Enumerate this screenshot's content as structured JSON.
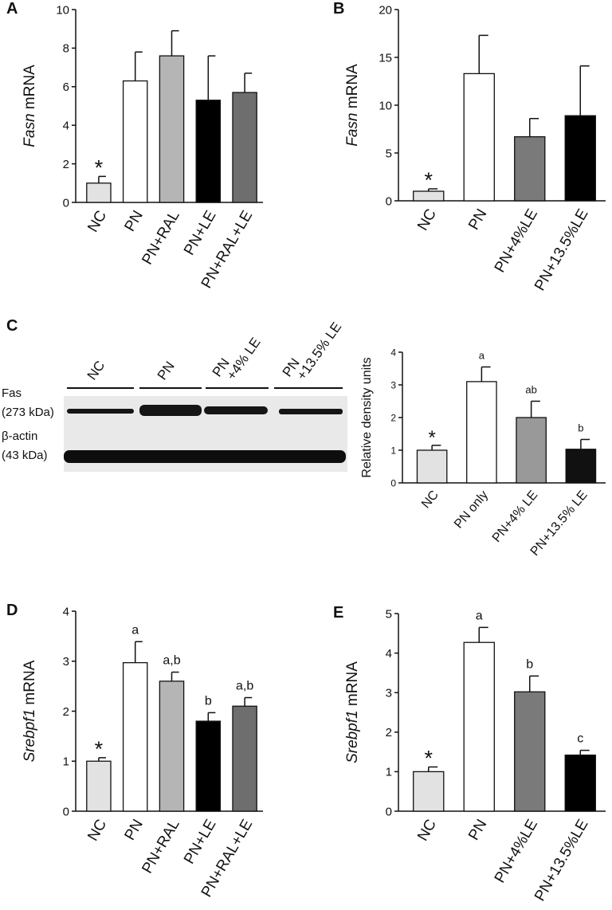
{
  "chart_data": [
    {
      "type": "bar",
      "panel": "A",
      "ylabel_gene": "Fasn",
      "ylabel": "mRNA",
      "categories": [
        "NC",
        "PN",
        "PN+RAL",
        "PN+LE",
        "PN+RAL+LE"
      ],
      "values": [
        1.0,
        6.3,
        7.6,
        5.3,
        5.7
      ],
      "errors": [
        0.35,
        1.5,
        1.3,
        2.3,
        1.0
      ],
      "labels": [
        "*",
        null,
        null,
        null,
        null
      ],
      "colors": [
        "#e2e2e2",
        "#ffffff",
        "#b5b5b5",
        "#000000",
        "#6e6e6e"
      ],
      "ylim": [
        0,
        10
      ],
      "yticks": [
        0,
        2,
        4,
        6,
        8,
        10
      ]
    },
    {
      "type": "bar",
      "panel": "B",
      "ylabel_gene": "Fasn",
      "ylabel": "mRNA",
      "categories": [
        "NC",
        "PN",
        "PN+4%LE",
        "PN+13.5%LE"
      ],
      "values": [
        1.0,
        13.3,
        6.7,
        8.9
      ],
      "errors": [
        0.25,
        4.0,
        1.9,
        5.2
      ],
      "labels": [
        "*",
        null,
        null,
        null
      ],
      "colors": [
        "#e2e2e2",
        "#ffffff",
        "#7a7a7a",
        "#000000"
      ],
      "ylim": [
        0,
        20
      ],
      "yticks": [
        0,
        5,
        10,
        15,
        20
      ]
    },
    {
      "type": "bar",
      "panel": "C",
      "ylabel": "Relative density units",
      "categories": [
        "NC",
        "PN only",
        "PN+4% LE",
        "PN+13.5% LE"
      ],
      "values": [
        1.0,
        3.1,
        2.0,
        1.03
      ],
      "errors": [
        0.15,
        0.45,
        0.5,
        0.3
      ],
      "labels": [
        "*",
        "a",
        "ab",
        "b"
      ],
      "colors": [
        "#e2e2e2",
        "#ffffff",
        "#999999",
        "#111111"
      ],
      "ylim": [
        0,
        4
      ],
      "yticks": [
        0,
        1,
        2,
        3,
        4
      ]
    },
    {
      "type": "bar",
      "panel": "D",
      "ylabel_gene": "Srebpf1",
      "ylabel": "mRNA",
      "categories": [
        "NC",
        "PN",
        "PN+RAL",
        "PN+LE",
        "PN+RAL+LE"
      ],
      "values": [
        1.0,
        2.97,
        2.6,
        1.8,
        2.1
      ],
      "errors": [
        0.07,
        0.42,
        0.18,
        0.17,
        0.17
      ],
      "labels": [
        "*",
        "a",
        "a,b",
        "b",
        "a,b"
      ],
      "colors": [
        "#e2e2e2",
        "#ffffff",
        "#b5b5b5",
        "#000000",
        "#6e6e6e"
      ],
      "ylim": [
        0,
        4
      ],
      "yticks": [
        0,
        1,
        2,
        3,
        4
      ]
    },
    {
      "type": "bar",
      "panel": "E",
      "ylabel_gene": "Srebpf1",
      "ylabel": "mRNA",
      "categories": [
        "NC",
        "PN",
        "PN+4%LE",
        "PN+13.5%LE"
      ],
      "values": [
        1.0,
        4.27,
        3.02,
        1.42
      ],
      "errors": [
        0.12,
        0.38,
        0.4,
        0.12
      ],
      "labels": [
        "*",
        "a",
        "b",
        "c"
      ],
      "colors": [
        "#e2e2e2",
        "#ffffff",
        "#7a7a7a",
        "#000000"
      ],
      "ylim": [
        0,
        5
      ],
      "yticks": [
        0,
        1,
        2,
        3,
        4,
        5
      ]
    }
  ],
  "blot": {
    "lanes": [
      [
        "NC"
      ],
      [
        "PN"
      ],
      [
        "PN",
        "+4% LE"
      ],
      [
        "PN",
        "+13.5% LE"
      ]
    ],
    "rows": [
      [
        "Fas",
        "(273 kDa)"
      ],
      [
        "β-actin",
        "(43 kDa)"
      ]
    ]
  }
}
